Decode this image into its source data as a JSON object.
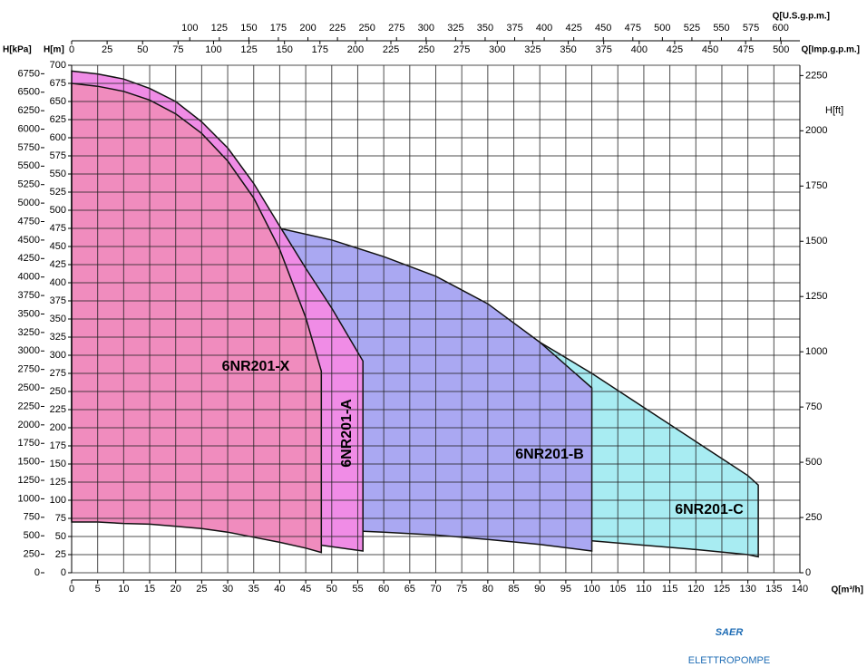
{
  "chart_data": {
    "type": "area",
    "grid": true,
    "x_label": "Q[m³/h]",
    "xlim": [
      0,
      140
    ],
    "xticks": [
      0,
      5,
      10,
      15,
      20,
      25,
      30,
      35,
      40,
      45,
      50,
      55,
      60,
      65,
      70,
      75,
      80,
      85,
      90,
      95,
      100,
      105,
      110,
      115,
      120,
      125,
      130,
      135,
      140
    ],
    "y_label": "H[m]",
    "ylim": [
      0,
      700
    ],
    "yticks": [
      0,
      25,
      50,
      75,
      100,
      125,
      150,
      175,
      200,
      225,
      250,
      275,
      300,
      325,
      350,
      375,
      400,
      425,
      450,
      475,
      500,
      525,
      550,
      575,
      600,
      625,
      650,
      675,
      700
    ],
    "kpa_axis": {
      "label": "H[kPa]",
      "lim": [
        0,
        6864.655
      ],
      "ticks": [
        0,
        250,
        500,
        750,
        1000,
        1250,
        1500,
        1750,
        2000,
        2250,
        2500,
        2750,
        3000,
        3250,
        3500,
        3750,
        4000,
        4250,
        4500,
        4750,
        5000,
        5250,
        5500,
        5750,
        6000,
        6250,
        6500,
        6750
      ]
    },
    "ft_axis": {
      "label": "H[ft]",
      "lim": [
        0,
        2296.588
      ],
      "ticks": [
        0,
        250,
        500,
        750,
        1000,
        1250,
        1500,
        1750,
        2000,
        2250
      ]
    },
    "imp_axis": {
      "label": "Q[Imp.g.p.m.]",
      "lim": [
        0,
        513.26
      ],
      "ticks": [
        0,
        25,
        50,
        75,
        100,
        125,
        150,
        175,
        200,
        225,
        250,
        275,
        300,
        325,
        350,
        375,
        400,
        425,
        450,
        475,
        500
      ]
    },
    "us_axis": {
      "label": "Q[U.S.g.p.m.]",
      "lim": [
        0,
        616.4
      ],
      "ticks": [
        100,
        125,
        150,
        175,
        200,
        225,
        250,
        275,
        300,
        325,
        350,
        375,
        400,
        425,
        450,
        475,
        500,
        525,
        550,
        575,
        600
      ]
    },
    "series": [
      {
        "name": "6NR201-C",
        "color": "#a8ecf2",
        "x": [
          90,
          100,
          110,
          120,
          130,
          132
        ],
        "values": [
          318,
          275,
          228,
          181,
          134,
          121
        ],
        "lower_x": [
          132,
          130,
          120,
          110,
          100,
          90
        ],
        "lower_values": [
          22,
          25,
          32,
          38,
          44,
          46
        ]
      },
      {
        "name": "6NR201-B",
        "color": "#aaa8f2",
        "x": [
          40,
          50,
          60,
          70,
          80,
          90,
          100
        ],
        "values": [
          475,
          459,
          436,
          409,
          371,
          318,
          255
        ],
        "lower_x": [
          100,
          90,
          80,
          70,
          60,
          50,
          40
        ],
        "lower_values": [
          30,
          39,
          46,
          52,
          56,
          59,
          62
        ]
      },
      {
        "name": "6NR201-A",
        "color": "#f08ce6",
        "x": [
          0,
          5,
          10,
          15,
          20,
          25,
          30,
          35,
          40,
          45,
          50,
          56
        ],
        "values": [
          692,
          688,
          681,
          668,
          650,
          622,
          586,
          537,
          478,
          420,
          365,
          292
        ],
        "lower_x": [
          56,
          48,
          40,
          30,
          20,
          10,
          0
        ],
        "lower_values": [
          30,
          38,
          50,
          60,
          66,
          70,
          72
        ]
      },
      {
        "name": "6NR201-X",
        "color": "#f08cbe",
        "x": [
          0,
          5,
          10,
          15,
          20,
          25,
          30,
          35,
          40,
          45,
          48
        ],
        "values": [
          675,
          671,
          664,
          652,
          633,
          606,
          568,
          517,
          446,
          352,
          278
        ],
        "lower_x": [
          48,
          45,
          40,
          35,
          30,
          25,
          20,
          15,
          10,
          5,
          0
        ],
        "lower_values": [
          28,
          34,
          42,
          49,
          56,
          61,
          64,
          67,
          68,
          70,
          70
        ]
      }
    ]
  },
  "logo": {
    "name": "SAER",
    "subtitle": "ELETTROPOMPE"
  }
}
